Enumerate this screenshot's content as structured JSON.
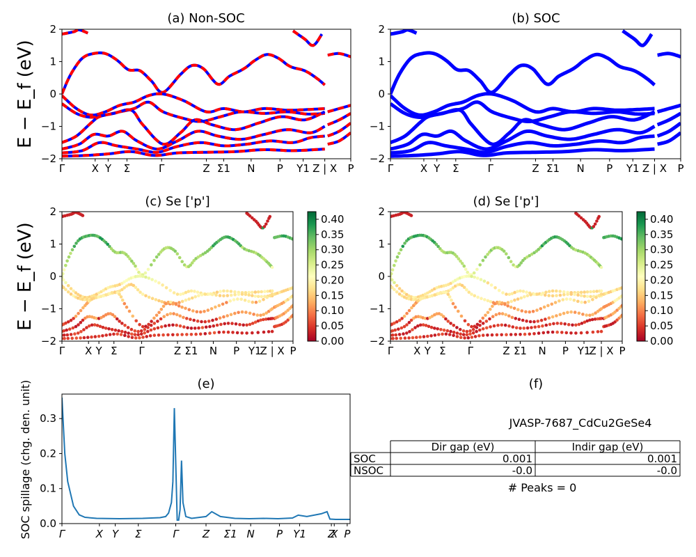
{
  "colors": {
    "nsoc": "#ff0000",
    "soc": "#0000ff",
    "spillage": "#1f77b4",
    "cmap": [
      "#a50026",
      "#d73027",
      "#f46d43",
      "#fdae61",
      "#fee08b",
      "#ffffbf",
      "#d9ef8b",
      "#a6d96a",
      "#66bd63",
      "#1a9850",
      "#006837"
    ]
  },
  "labels": {
    "ylabel_band": "E − E_f (eV)",
    "ylabel_spill": "SOC spillage (chg. den. unit)"
  },
  "kpath_ticks": [
    "Γ",
    "X",
    "Y",
    "Σ",
    "Γ",
    "Z",
    "Σ1",
    "N",
    "P",
    "Y1",
    "Z | X",
    "P"
  ],
  "panels": {
    "a": {
      "title": "(a) Non-SOC",
      "yticks": [
        "2",
        "1",
        "0",
        "−1",
        "−2"
      ]
    },
    "b": {
      "title": "(b) SOC",
      "yticks": [
        "2",
        "1",
        "0",
        "−1",
        "−2"
      ]
    },
    "c": {
      "title": "(c)  Se ['p']",
      "yticks": [
        "2",
        "1",
        "0",
        "−1",
        "−2"
      ]
    },
    "d": {
      "title": "(d) Se ['p']",
      "yticks": [
        "2",
        "1",
        "0",
        "−1",
        "−2"
      ]
    },
    "e": {
      "title": "(e)",
      "yticks": [
        "0.3",
        "0.2",
        "0.1",
        "0.0"
      ],
      "xticks": [
        "Γ",
        "X",
        "Y",
        "Σ",
        "Γ",
        "Z",
        "Σ1",
        "N",
        "P",
        "Y1",
        "Z",
        "X",
        "P"
      ]
    },
    "f": {
      "title": "(f)"
    }
  },
  "colorbar": {
    "ticks": [
      "0.40",
      "0.35",
      "0.30",
      "0.25",
      "0.20",
      "0.15",
      "0.10",
      "0.05",
      "0.00"
    ]
  },
  "chart_data": [
    {
      "type": "line",
      "id": "band_structure_nonsoc",
      "ylim": [
        -2,
        2
      ],
      "x_ticks": [
        "Γ",
        "X",
        "Y",
        "Σ",
        "Γ",
        "Z",
        "Σ1",
        "N",
        "P",
        "Y1",
        "Z | X",
        "P"
      ],
      "series": [
        {
          "bands": [
            [
              -0.05,
              -0.55,
              -0.7,
              -0.6,
              -0.45,
              -0.3,
              -0.1,
              0.05,
              0.0,
              -0.5,
              -0.55,
              -0.5
            ],
            [
              0.0,
              0.7,
              1.2,
              1.25,
              1.2,
              1.0,
              0.6,
              0.1,
              0.5,
              0.85,
              0.3,
              0.6,
              0.9,
              0.85,
              0.7,
              0.55,
              0.35
            ],
            [
              1.85,
              1.9,
              1.95,
              2.0,
              1.95,
              1.9,
              2.0,
              1.85,
              1.6,
              1.95,
              1.85
            ],
            [
              -0.3,
              -0.6,
              -0.75,
              -0.6,
              -0.5,
              -0.3,
              -0.15,
              -0.7,
              -0.85,
              -0.65,
              -0.45,
              -0.55,
              -0.5,
              -0.4,
              -0.45,
              -0.5
            ],
            [
              -1.55,
              -1.35,
              -0.8,
              -0.7,
              -0.55,
              -1.5,
              -1.6,
              -1.2,
              -0.9,
              -0.55,
              -0.5,
              -0.6
            ],
            [
              -1.75,
              -1.6,
              -1.3,
              -1.2,
              -1.4,
              -1.65,
              -1.3,
              -1.0,
              -1.35,
              -1.1,
              -0.9,
              -1.0
            ],
            [
              -1.85,
              -1.8,
              -1.55,
              -1.65,
              -1.75,
              -1.5,
              -1.4,
              -1.55,
              -1.4,
              -1.35,
              -1.2
            ]
          ]
        }
      ]
    },
    {
      "type": "line",
      "id": "band_structure_soc",
      "ylim": [
        -2,
        2
      ],
      "x_ticks": [
        "Γ",
        "X",
        "Y",
        "Σ",
        "Γ",
        "Z",
        "Σ1",
        "N",
        "P",
        "Y1",
        "Z | X",
        "P"
      ]
    },
    {
      "type": "scatter",
      "id": "projected_bands_nonsoc",
      "ylim": [
        -2,
        2
      ],
      "colorbar": [
        0.0,
        0.42
      ],
      "x_ticks": [
        "Γ",
        "X",
        "Y",
        "Σ",
        "Γ",
        "Z",
        "Σ1",
        "N",
        "P",
        "Y1",
        "Z | X",
        "P"
      ]
    },
    {
      "type": "scatter",
      "id": "projected_bands_soc",
      "ylim": [
        -2,
        2
      ],
      "colorbar": [
        0.0,
        0.42
      ],
      "x_ticks": [
        "Γ",
        "X",
        "Y",
        "Σ",
        "Γ",
        "Z",
        "Σ1",
        "N",
        "P",
        "Y1",
        "Z | X",
        "P"
      ]
    },
    {
      "type": "line",
      "id": "soc_spillage",
      "ylabel": "SOC spillage (chg. den. unit)",
      "ylim": [
        0,
        0.37
      ],
      "x_ticks": [
        "Γ",
        "X",
        "Y",
        "Σ",
        "Γ",
        "Z",
        "Σ1",
        "N",
        "P",
        "Y1",
        "Z",
        "X",
        "P"
      ],
      "x": [
        0.0,
        0.01,
        0.02,
        0.04,
        0.06,
        0.08,
        0.12,
        0.2,
        0.28,
        0.34,
        0.36,
        0.37,
        0.38,
        0.385,
        0.39,
        0.4,
        0.405,
        0.41,
        0.415,
        0.42,
        0.43,
        0.45,
        0.5,
        0.52,
        0.55,
        0.6,
        0.65,
        0.7,
        0.75,
        0.8,
        0.82,
        0.85,
        0.9,
        0.92,
        0.93,
        0.95,
        1.0
      ],
      "y": [
        0.36,
        0.2,
        0.12,
        0.05,
        0.025,
        0.018,
        0.015,
        0.014,
        0.015,
        0.017,
        0.02,
        0.03,
        0.06,
        0.12,
        0.33,
        0.01,
        0.01,
        0.04,
        0.18,
        0.06,
        0.02,
        0.015,
        0.02,
        0.034,
        0.02,
        0.015,
        0.014,
        0.015,
        0.014,
        0.016,
        0.024,
        0.02,
        0.028,
        0.034,
        0.013,
        0.012,
        0.012
      ]
    },
    {
      "type": "table",
      "id": "gap_table",
      "title": "JVASP-7687_CdCu2GeSe4",
      "columns": [
        "Dir gap (eV)",
        "Indir gap (eV)"
      ],
      "rows": [
        {
          "label": "SOC",
          "values": [
            "0.001",
            "0.001"
          ]
        },
        {
          "label": "NSOC",
          "values": [
            "-0.0",
            "-0.0"
          ]
        }
      ],
      "footer": "# Peaks = 0"
    }
  ]
}
